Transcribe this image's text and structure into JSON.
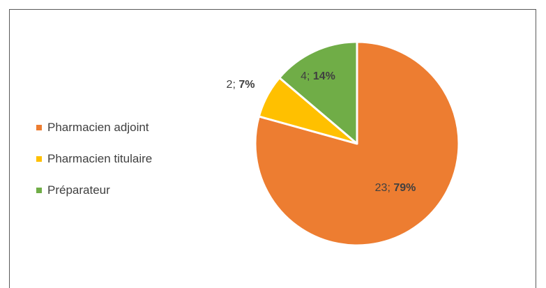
{
  "chart_data": {
    "type": "pie",
    "title": "",
    "categories": [
      "Pharmacien adjoint",
      "Pharmacien titulaire",
      "Préparateur"
    ],
    "values": [
      23,
      2,
      4
    ],
    "percentages": [
      "79%",
      "7%",
      "14%"
    ],
    "data_labels": [
      {
        "count": "23",
        "sep": "; ",
        "pct": "79%"
      },
      {
        "count": "2",
        "sep": "; ",
        "pct": "7%"
      },
      {
        "count": "4",
        "sep": "; ",
        "pct": "14%"
      }
    ],
    "colors": [
      "#ED7D31",
      "#FFC000",
      "#70AD47"
    ],
    "legend_position": "left"
  }
}
